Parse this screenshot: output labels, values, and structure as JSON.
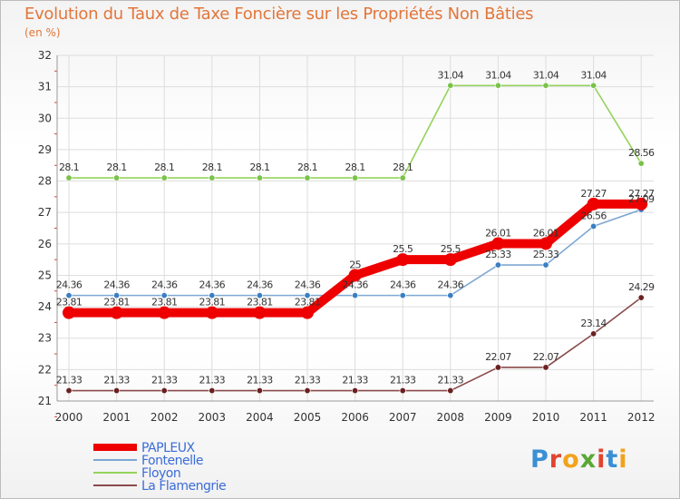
{
  "title": "Evolution du Taux de Taxe Foncière sur les Propriétés Non Bâties",
  "unit_label": "(en %)",
  "logo": {
    "letters": [
      "P",
      "r",
      "o",
      "x",
      "i",
      "t",
      "i"
    ],
    "colors": [
      "#3a8fd4",
      "#e1452f",
      "#f2a21b",
      "#5aa836",
      "#e1452f",
      "#3a8fd4",
      "#f2a21b"
    ]
  },
  "chart_data": {
    "type": "line",
    "title": "Evolution du Taux de Taxe Foncière sur les Propriétés Non Bâties",
    "ylabel": "(en %)",
    "xlabel": "",
    "categories": [
      "2000",
      "2001",
      "2002",
      "2003",
      "2004",
      "2005",
      "2006",
      "2007",
      "2008",
      "2009",
      "2010",
      "2011",
      "2012"
    ],
    "ylim": [
      21,
      32
    ],
    "yticks": [
      21,
      22,
      23,
      24,
      25,
      26,
      27,
      28,
      29,
      30,
      31,
      32
    ],
    "grid": true,
    "legend_position": "bottom-left",
    "series": [
      {
        "name": "Floyon",
        "color": "#94d35a",
        "dot": "#7bc24a",
        "thick": false,
        "values": [
          28.1,
          28.1,
          28.1,
          28.1,
          28.1,
          28.1,
          28.1,
          28.1,
          31.04,
          31.04,
          31.04,
          31.04,
          28.56
        ],
        "labels": [
          "28.1",
          "28.1",
          "28.1",
          "28.1",
          "28.1",
          "28.1",
          "28.1",
          "28.1",
          "31.04",
          "31.04",
          "31.04",
          "31.04",
          "28.56"
        ]
      },
      {
        "name": "Fontenelle",
        "color": "#7ea8d2",
        "dot": "#3a7fc4",
        "thick": false,
        "values": [
          24.36,
          24.36,
          24.36,
          24.36,
          24.36,
          24.36,
          24.36,
          24.36,
          24.36,
          25.33,
          25.33,
          26.56,
          27.09
        ],
        "labels": [
          "24.36",
          "24.36",
          "24.36",
          "24.36",
          "24.36",
          "24.36",
          "24.36",
          "24.36",
          "24.36",
          "25.33",
          "25.33",
          "26.56",
          "27.09"
        ]
      },
      {
        "name": "La Flamengrie",
        "color": "#8a4a4a",
        "dot": "#6b2020",
        "thick": false,
        "values": [
          21.33,
          21.33,
          21.33,
          21.33,
          21.33,
          21.33,
          21.33,
          21.33,
          21.33,
          22.07,
          22.07,
          23.14,
          24.29
        ],
        "labels": [
          "21.33",
          "21.33",
          "21.33",
          "21.33",
          "21.33",
          "21.33",
          "21.33",
          "21.33",
          "21.33",
          "22.07",
          "22.07",
          "23.14",
          "24.29"
        ]
      },
      {
        "name": "PAPLEUX",
        "color": "#ee0000",
        "dot": "#ee0000",
        "thick": true,
        "values": [
          23.81,
          23.81,
          23.81,
          23.81,
          23.81,
          23.81,
          25,
          25.5,
          25.5,
          26.01,
          26.01,
          27.27,
          27.27
        ],
        "labels": [
          "23.81",
          "23.81",
          "23.81",
          "23.81",
          "23.81",
          "23.81",
          "25",
          "25.5",
          "25.5",
          "26.01",
          "26.01",
          "27.27",
          "27.27"
        ]
      }
    ],
    "legend": [
      "PAPLEUX",
      "Fontenelle",
      "Floyon",
      "La Flamengrie"
    ]
  }
}
